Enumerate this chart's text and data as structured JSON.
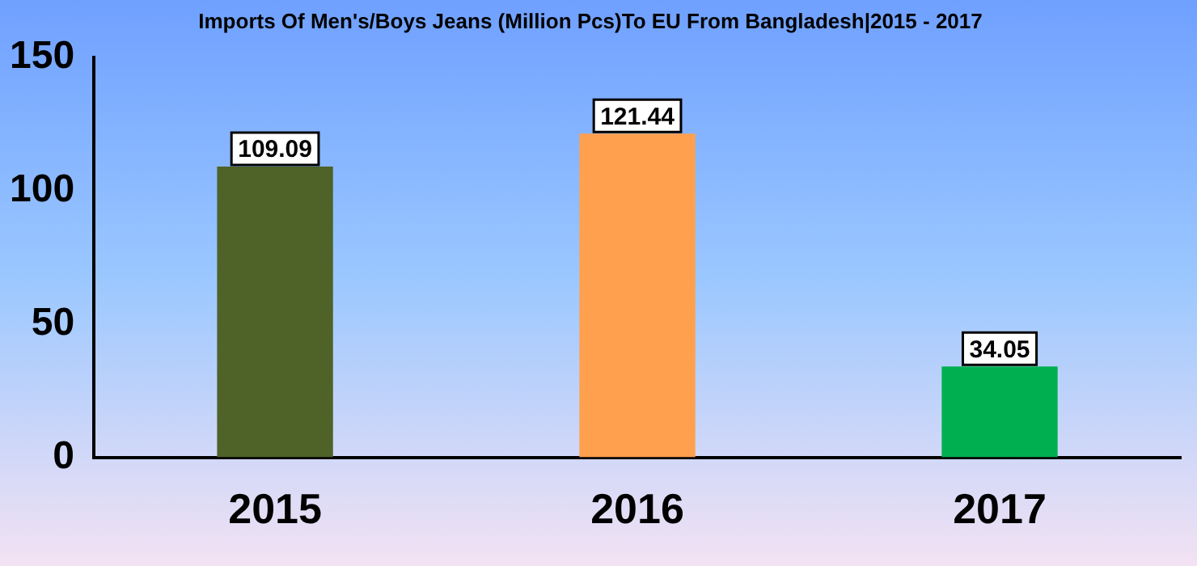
{
  "chart_data": {
    "type": "bar",
    "title": "Imports Of Men's/Boys Jeans (Million Pcs)To EU From Bangladesh|2015 - 2017",
    "categories": [
      "2015",
      "2016",
      "2017"
    ],
    "values": [
      109.09,
      121.44,
      34.05
    ],
    "colors": [
      "#4f6228",
      "#ffa04f",
      "#00b050"
    ],
    "ylim": [
      0,
      150
    ],
    "yticks": [
      0,
      50,
      100,
      150
    ],
    "grid": false,
    "legend": false,
    "data_labels": true
  }
}
